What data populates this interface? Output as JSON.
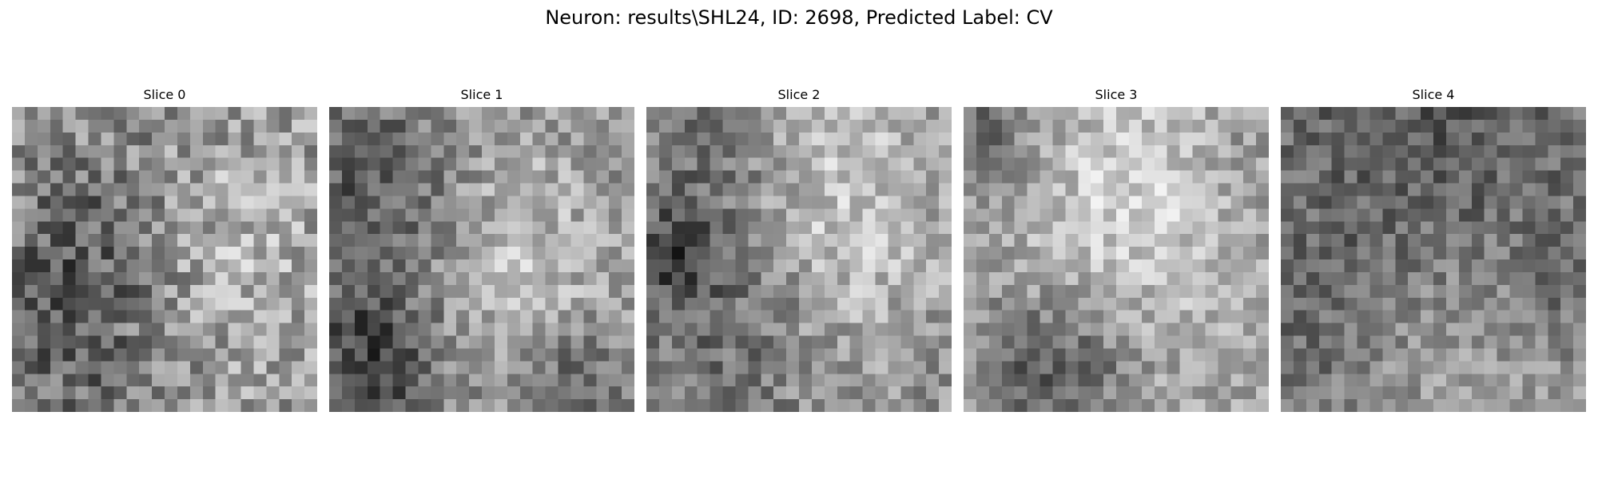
{
  "figure": {
    "title": "Neuron: results\\SHL24, ID: 2698, Predicted Label: CV"
  },
  "panels": [
    {
      "title": "Slice 0"
    },
    {
      "title": "Slice 1"
    },
    {
      "title": "Slice 2"
    },
    {
      "title": "Slice 3"
    },
    {
      "title": "Slice 4"
    }
  ],
  "colors": {
    "background": "#ffffff",
    "colormap": "gray"
  }
}
